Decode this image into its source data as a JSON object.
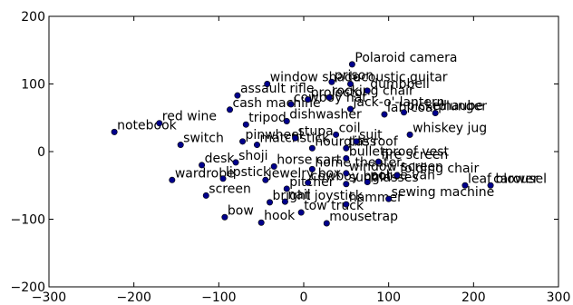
{
  "chart_data": {
    "type": "scatter",
    "title": "",
    "xlabel": "",
    "ylabel": "",
    "xlim": [
      -300,
      300
    ],
    "ylim": [
      -200,
      200
    ],
    "xticks": [
      "−300",
      "−200",
      "−100",
      "0",
      "100",
      "200",
      "300"
    ],
    "yticks": [
      "200",
      "100",
      "0",
      "−100",
      "−200"
    ],
    "xtick_values": [
      -300,
      -200,
      -100,
      0,
      100,
      200,
      300
    ],
    "ytick_values": [
      200,
      100,
      0,
      -100,
      -200
    ],
    "grid": false,
    "marker_color": "#00008b",
    "points": [
      {
        "label": "Polaroid camera",
        "x": 57,
        "y": 129
      },
      {
        "label": "prison",
        "x": 33,
        "y": 103
      },
      {
        "label": "acoustic guitar",
        "x": 55,
        "y": 100
      },
      {
        "label": "window shade",
        "x": -43,
        "y": 100
      },
      {
        "label": "dumbbell",
        "x": 75,
        "y": 90
      },
      {
        "label": "assault rifle",
        "x": -78,
        "y": 83
      },
      {
        "label": "rocking chair",
        "x": 30,
        "y": 80
      },
      {
        "label": "cowboy hat",
        "x": -15,
        "y": 70
      },
      {
        "label": "projector",
        "x": 5,
        "y": 77
      },
      {
        "label": "cash machine",
        "x": -87,
        "y": 62
      },
      {
        "label": "jack-o'-lantern",
        "x": 55,
        "y": 63
      },
      {
        "label": "plunger",
        "x": 155,
        "y": 57
      },
      {
        "label": "pickelhaube",
        "x": 118,
        "y": 58
      },
      {
        "label": "lab coat",
        "x": 95,
        "y": 55
      },
      {
        "label": "red wine",
        "x": -170,
        "y": 42
      },
      {
        "label": "tripod",
        "x": -68,
        "y": 40
      },
      {
        "label": "dishwasher",
        "x": -20,
        "y": 45
      },
      {
        "label": "notebook",
        "x": -223,
        "y": 29
      },
      {
        "label": "whiskey jug",
        "x": 125,
        "y": 25
      },
      {
        "label": "switch",
        "x": -145,
        "y": 10
      },
      {
        "label": "pinwheel",
        "x": -72,
        "y": 15
      },
      {
        "label": "stupa",
        "x": -10,
        "y": 20
      },
      {
        "label": "coil",
        "x": 38,
        "y": 25
      },
      {
        "label": "matchstick",
        "x": -55,
        "y": 10
      },
      {
        "label": "hourglass",
        "x": 10,
        "y": 5
      },
      {
        "label": "tile roof",
        "x": 50,
        "y": 5
      },
      {
        "label": "suit",
        "x": 62,
        "y": 15
      },
      {
        "label": "bulletproof vest",
        "x": 50,
        "y": -10
      },
      {
        "label": "fire screen",
        "x": 88,
        "y": -15
      },
      {
        "label": "desk",
        "x": -120,
        "y": -20
      },
      {
        "label": "shoji",
        "x": -80,
        "y": -16
      },
      {
        "label": "horse cart",
        "x": -35,
        "y": -22
      },
      {
        "label": "home theater",
        "x": 10,
        "y": -26
      },
      {
        "label": "window screen",
        "x": 50,
        "y": -32
      },
      {
        "label": "folding chair",
        "x": 110,
        "y": -35
      },
      {
        "label": "carousel",
        "x": 220,
        "y": -50
      },
      {
        "label": "leaf blower",
        "x": 190,
        "y": -50
      },
      {
        "label": "wardrobe",
        "x": -155,
        "y": -42
      },
      {
        "label": "lipstick",
        "x": -95,
        "y": -40
      },
      {
        "label": "jewelry box",
        "x": -45,
        "y": -42
      },
      {
        "label": "cowboy boot",
        "x": 5,
        "y": -46
      },
      {
        "label": "police van",
        "x": 75,
        "y": -45
      },
      {
        "label": "sunglasses",
        "x": 50,
        "y": -48
      },
      {
        "label": "pitcher",
        "x": -20,
        "y": -55
      },
      {
        "label": "screen",
        "x": -115,
        "y": -65
      },
      {
        "label": "bright joystick",
        "x": -40,
        "y": -75
      },
      {
        "label": "nail",
        "x": -22,
        "y": -74
      },
      {
        "label": "sewing machine",
        "x": 100,
        "y": -70
      },
      {
        "label": "hammer",
        "x": 50,
        "y": -78
      },
      {
        "label": "tow truck",
        "x": -3,
        "y": -90
      },
      {
        "label": "bow",
        "x": -93,
        "y": -97
      },
      {
        "label": "hook",
        "x": -50,
        "y": -105
      },
      {
        "label": "mousetrap",
        "x": 27,
        "y": -106
      }
    ]
  }
}
